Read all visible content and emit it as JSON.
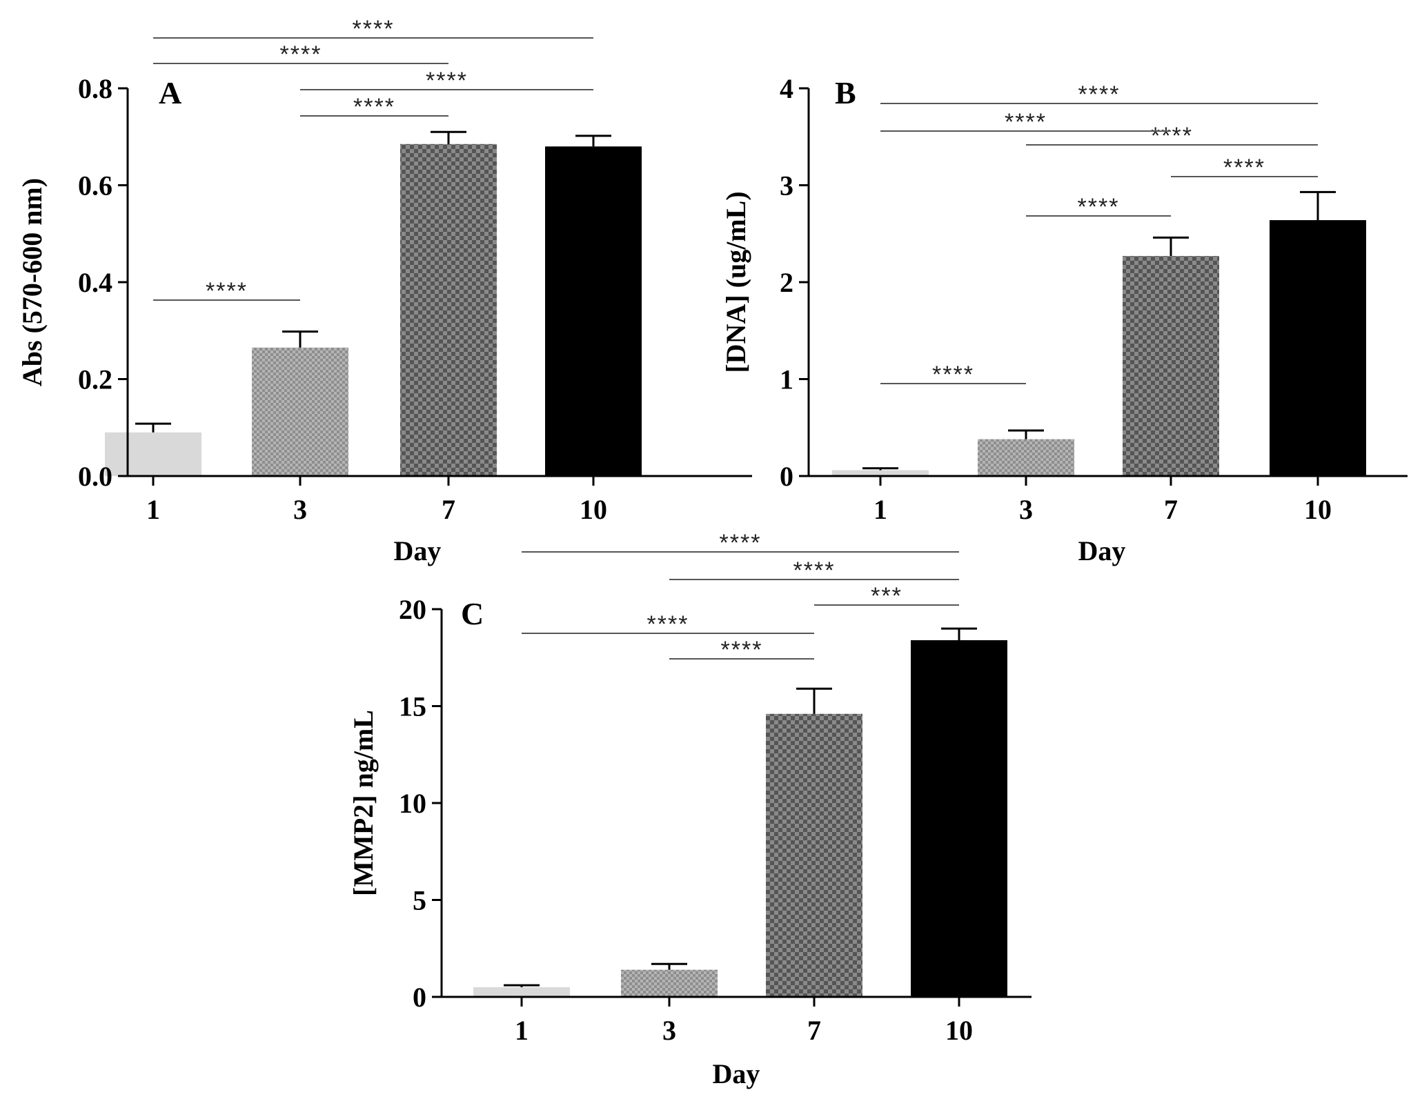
{
  "patterns": {
    "day1": "#d9d9d9",
    "day3": "#aaaaaa",
    "day7": "#777777",
    "day10": "#000000"
  },
  "chart_data": [
    {
      "id": "A",
      "type": "bar",
      "panel_label": "A",
      "xlabel": "Day",
      "ylabel": "Abs (570-600 nm)",
      "categories": [
        "1",
        "3",
        "7",
        "10"
      ],
      "values": [
        0.09,
        0.265,
        0.685,
        0.68
      ],
      "errors": [
        0.018,
        0.033,
        0.025,
        0.022
      ],
      "ylim": [
        0,
        0.8
      ],
      "yticks": [
        0.0,
        0.2,
        0.4,
        0.6,
        0.8
      ],
      "ytick_labels": [
        "0.0",
        "0.2",
        "0.4",
        "0.6",
        "0.8"
      ],
      "significance": [
        {
          "from": 0,
          "to": 1,
          "label": "****"
        },
        {
          "from": 1,
          "to": 2,
          "label": "****"
        },
        {
          "from": 1,
          "to": 3,
          "label": "****"
        },
        {
          "from": 0,
          "to": 2,
          "label": "****"
        },
        {
          "from": 0,
          "to": 3,
          "label": "****"
        }
      ]
    },
    {
      "id": "B",
      "type": "bar",
      "panel_label": "B",
      "xlabel": "Day",
      "ylabel": "[DNA] (ug/mL)",
      "categories": [
        "1",
        "3",
        "7",
        "10"
      ],
      "values": [
        0.06,
        0.38,
        2.27,
        2.64
      ],
      "errors": [
        0.02,
        0.09,
        0.19,
        0.29
      ],
      "ylim": [
        0,
        4
      ],
      "yticks": [
        0,
        1,
        2,
        3,
        4
      ],
      "ytick_labels": [
        "0",
        "1",
        "2",
        "3",
        "4"
      ],
      "significance": [
        {
          "from": 0,
          "to": 1,
          "label": "****"
        },
        {
          "from": 1,
          "to": 2,
          "label": "****"
        },
        {
          "from": 2,
          "to": 3,
          "label": "****"
        },
        {
          "from": 1,
          "to": 3,
          "label": "****"
        },
        {
          "from": 0,
          "to": 2,
          "label": "****"
        },
        {
          "from": 0,
          "to": 3,
          "label": "****"
        }
      ]
    },
    {
      "id": "C",
      "type": "bar",
      "panel_label": "C",
      "xlabel": "Day",
      "ylabel": "[MMP2]  ng/mL",
      "categories": [
        "1",
        "3",
        "7",
        "10"
      ],
      "values": [
        0.5,
        1.4,
        14.6,
        18.4
      ],
      "errors": [
        0.1,
        0.3,
        1.3,
        0.6
      ],
      "ylim": [
        0,
        20
      ],
      "yticks": [
        0,
        5,
        10,
        15,
        20
      ],
      "ytick_labels": [
        "0",
        "5",
        "10",
        "15",
        "20"
      ],
      "significance": [
        {
          "from": 1,
          "to": 2,
          "label": "****"
        },
        {
          "from": 0,
          "to": 2,
          "label": "****"
        },
        {
          "from": 2,
          "to": 3,
          "label": "***"
        },
        {
          "from": 1,
          "to": 3,
          "label": "****"
        },
        {
          "from": 0,
          "to": 3,
          "label": "****"
        }
      ]
    }
  ]
}
